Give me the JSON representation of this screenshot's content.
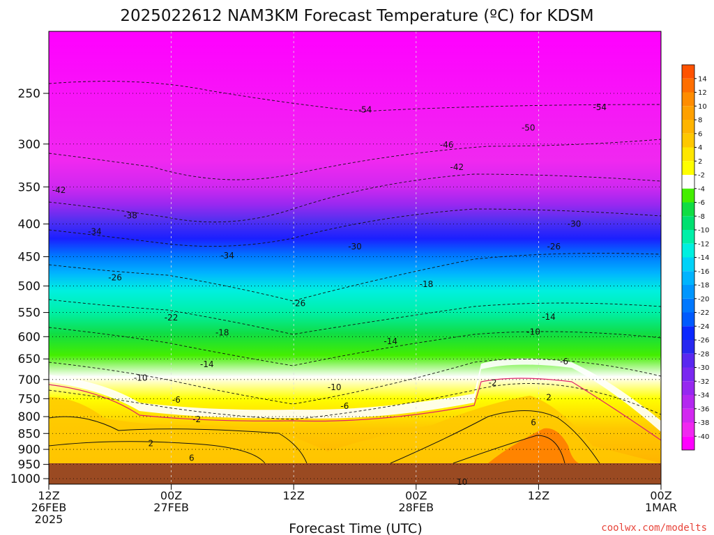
{
  "chart_data": {
    "type": "heatmap",
    "title": "2025022612 NAM3KM Forecast Temperature (ºC) for KDSM",
    "xlabel": "Forecast Time (UTC)",
    "ylabel": "",
    "x_ticks": [
      {
        "t": 0,
        "lines": [
          "12Z",
          "26FEB",
          "2025"
        ]
      },
      {
        "t": 12,
        "lines": [
          "00Z",
          "27FEB"
        ]
      },
      {
        "t": 24,
        "lines": [
          "12Z"
        ]
      },
      {
        "t": 36,
        "lines": [
          "00Z",
          "28FEB"
        ]
      },
      {
        "t": 48,
        "lines": [
          "12Z"
        ]
      },
      {
        "t": 60,
        "lines": [
          "00Z",
          "1MAR"
        ]
      }
    ],
    "x_range_hours": [
      0,
      60
    ],
    "y_ticks_hpa": [
      250,
      300,
      350,
      400,
      450,
      500,
      550,
      600,
      650,
      700,
      750,
      800,
      850,
      900,
      950,
      1000
    ],
    "y_range_hpa": [
      200,
      1020
    ],
    "y_scale": "log-pressure",
    "grid": true,
    "colorbar": {
      "levels": [
        14,
        12,
        10,
        8,
        6,
        4,
        2,
        -2,
        -4,
        -6,
        -8,
        -10,
        -12,
        -14,
        -16,
        -18,
        -20,
        -22,
        -24,
        -26,
        -28,
        -30,
        -32,
        -34,
        -36,
        -38,
        -40
      ],
      "colors": [
        "#ff5200",
        "#ff6e00",
        "#ff8c00",
        "#ffa000",
        "#ffb400",
        "#ffc800",
        "#ffe600",
        "#ffff00",
        "#ffffff",
        "#44ee00",
        "#10dd44",
        "#00e070",
        "#00f0a8",
        "#00f0e0",
        "#00d2f8",
        "#00b4ff",
        "#0096ff",
        "#0078ff",
        "#005aff",
        "#0a28ff",
        "#2828f0",
        "#5a28f0",
        "#7a28f0",
        "#9628f0",
        "#b428f0",
        "#d228f0",
        "#f028f0",
        "#ff00ff"
      ]
    },
    "contour_labels": [
      {
        "t": 8.0,
        "p": 388,
        "v": "-38"
      },
      {
        "t": 4.5,
        "p": 411,
        "v": "-34"
      },
      {
        "t": 17.5,
        "p": 448,
        "v": "-34"
      },
      {
        "t": 30.0,
        "p": 434,
        "v": "-30"
      },
      {
        "t": 51.5,
        "p": 400,
        "v": "-30"
      },
      {
        "t": 49.5,
        "p": 434,
        "v": "-26"
      },
      {
        "t": 6.5,
        "p": 485,
        "v": "-26"
      },
      {
        "t": 24.5,
        "p": 532,
        "v": "-26"
      },
      {
        "t": 37.0,
        "p": 497,
        "v": "-18"
      },
      {
        "t": 12.0,
        "p": 560,
        "v": "-22"
      },
      {
        "t": 17.0,
        "p": 591,
        "v": "-18"
      },
      {
        "t": 33.5,
        "p": 610,
        "v": "-14"
      },
      {
        "t": 49.0,
        "p": 559,
        "v": "-14"
      },
      {
        "t": 47.5,
        "p": 590,
        "v": "-10"
      },
      {
        "t": 15.5,
        "p": 663,
        "v": "-14"
      },
      {
        "t": 9.0,
        "p": 696,
        "v": "-10"
      },
      {
        "t": 28.0,
        "p": 720,
        "v": "-10"
      },
      {
        "t": 29.0,
        "p": 770,
        "v": "-6"
      },
      {
        "t": 12.5,
        "p": 753,
        "v": "-6"
      },
      {
        "t": 50.5,
        "p": 656,
        "v": "-6"
      },
      {
        "t": 43.5,
        "p": 708,
        "v": "-2"
      },
      {
        "t": 14.5,
        "p": 808,
        "v": "-2"
      },
      {
        "t": 49.0,
        "p": 747,
        "v": "2"
      },
      {
        "t": 10.0,
        "p": 881,
        "v": "2"
      },
      {
        "t": 47.5,
        "p": 817,
        "v": "6"
      },
      {
        "t": 14.0,
        "p": 928,
        "v": "6"
      },
      {
        "t": 40.5,
        "p": 1012,
        "v": "10"
      },
      {
        "t": 1.0,
        "p": 354,
        "v": "-42"
      },
      {
        "t": 40.0,
        "p": 326,
        "v": "-42"
      },
      {
        "t": 39.0,
        "p": 301,
        "v": "-46"
      },
      {
        "t": 47.0,
        "p": 283,
        "v": "-50"
      },
      {
        "t": 31.0,
        "p": 265,
        "v": "-54"
      },
      {
        "t": 54.0,
        "p": 263,
        "v": "-54"
      }
    ]
  },
  "watermark": "coolwx.com/modelts"
}
